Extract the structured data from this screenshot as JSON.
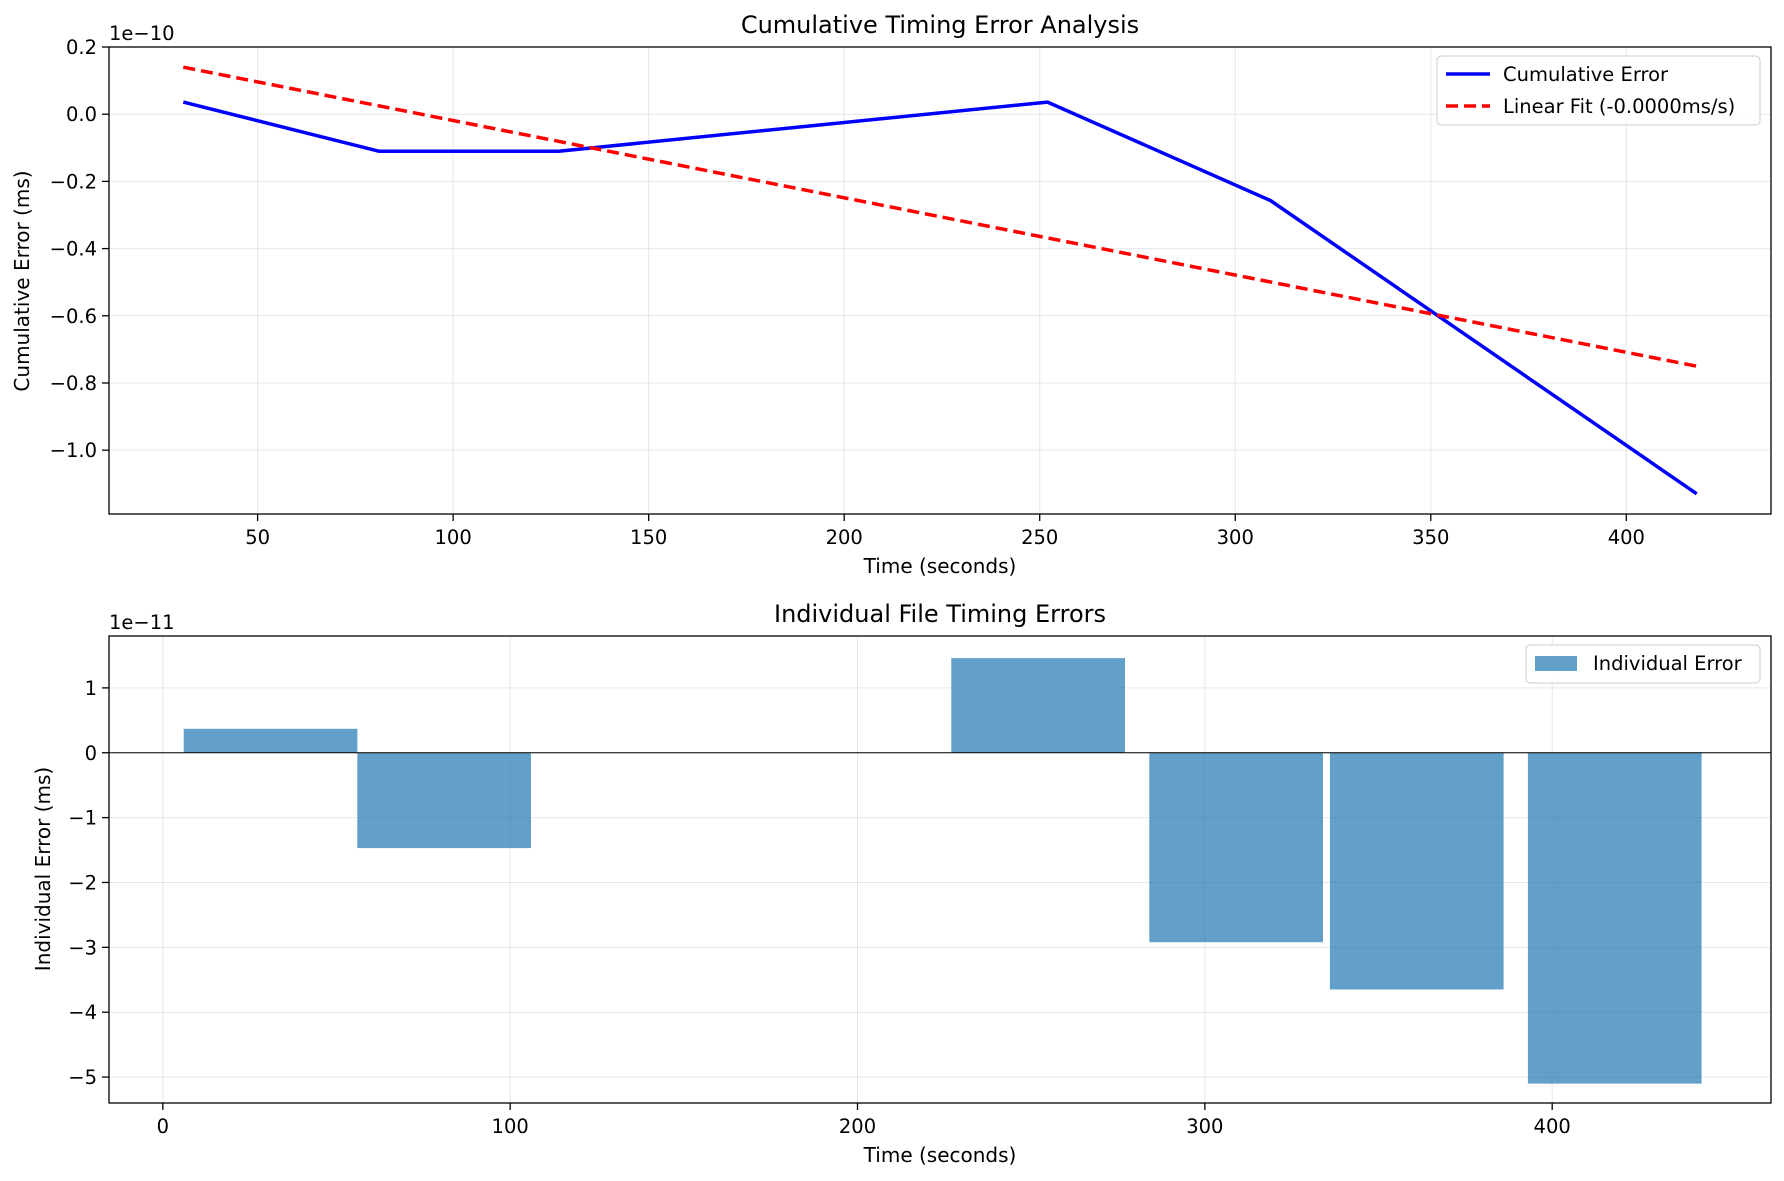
{
  "chart_data": [
    {
      "type": "line",
      "title": "Cumulative Timing Error Analysis",
      "xlabel": "Time (seconds)",
      "ylabel": "Cumulative Error (ms)",
      "y_offset_text": "1e−10",
      "y_scale_exponent": -10,
      "xlim": [
        12,
        437
      ],
      "ylim": [
        -1.19,
        0.2
      ],
      "xticks": [
        50,
        100,
        150,
        200,
        250,
        300,
        350,
        400
      ],
      "yticks": [
        0.2,
        0.0,
        -0.2,
        -0.4,
        -0.6,
        -0.8,
        -1.0
      ],
      "ytick_labels": [
        "0.2",
        "0.0",
        "−0.2",
        "−0.4",
        "−0.6",
        "−0.8",
        "−1.0"
      ],
      "grid": true,
      "legend_position": "upper right",
      "series": [
        {
          "name": "Cumulative Error",
          "style": "solid",
          "color": "#0000ff",
          "x": [
            31,
            81,
            127,
            252,
            309,
            418
          ],
          "y": [
            0.036,
            -0.11,
            -0.11,
            0.036,
            -0.257,
            -1.13
          ]
        },
        {
          "name": "Linear Fit (-0.0000ms/s)",
          "style": "dashed",
          "color": "#ff0000",
          "x": [
            31,
            418
          ],
          "y": [
            0.14,
            -0.75
          ]
        }
      ]
    },
    {
      "type": "bar",
      "title": "Individual File Timing Errors",
      "xlabel": "Time (seconds)",
      "ylabel": "Individual Error (ms)",
      "y_offset_text": "1e−11",
      "y_scale_exponent": -11,
      "xlim": [
        -15.5,
        463
      ],
      "ylim": [
        -5.4,
        1.8
      ],
      "xticks": [
        0,
        100,
        200,
        300,
        400
      ],
      "yticks": [
        1,
        0,
        -1,
        -2,
        -3,
        -4,
        -5
      ],
      "ytick_labels": [
        "1",
        "0",
        "−1",
        "−2",
        "−3",
        "−4",
        "−5"
      ],
      "grid": true,
      "legend_position": "upper right",
      "series": [
        {
          "name": "Individual Error",
          "color": "#1f77b4",
          "opacity": 0.7,
          "bar_width": 50,
          "x": [
            31,
            81,
            252,
            309,
            361,
            418
          ],
          "values": [
            0.37,
            -1.47,
            1.46,
            -2.92,
            -3.65,
            -5.1
          ]
        }
      ]
    }
  ]
}
